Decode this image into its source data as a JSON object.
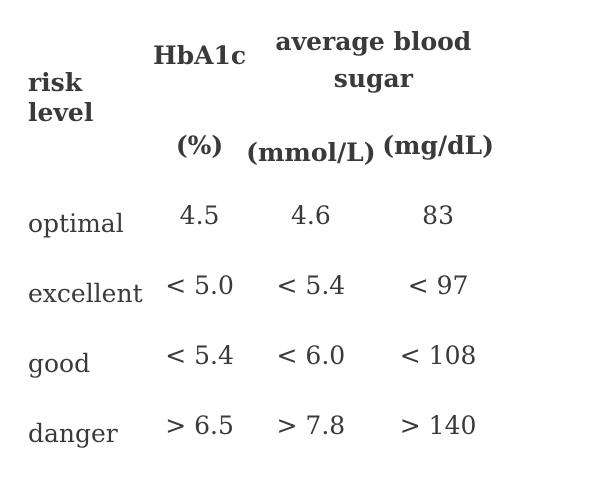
{
  "colors": {
    "text": "#3a3a3a",
    "background": "#ffffff"
  },
  "table": {
    "header": {
      "risk_level": "risk level",
      "hba1c": "HbA1c",
      "hba1c_unit": "(%)",
      "avg_blood_sugar": "average blood sugar",
      "mmol_unit": "(mmol/L)",
      "mgdl_unit": "(mg/dL)"
    },
    "rows": [
      {
        "label": "optimal",
        "hba1c": "4.5",
        "mmol": "4.6",
        "mgdl": "83"
      },
      {
        "label": "excellent",
        "hba1c": "< 5.0",
        "mmol": "< 5.4",
        "mgdl": "< 97"
      },
      {
        "label": "good",
        "hba1c": "< 5.4",
        "mmol": "< 6.0",
        "mgdl": "< 108"
      },
      {
        "label": "danger",
        "hba1c": "> 6.5",
        "mmol": "> 7.8",
        "mgdl": "> 140"
      }
    ]
  },
  "chart_data": {
    "type": "table",
    "title": "",
    "columns": [
      "risk level",
      "HbA1c (%)",
      "average blood sugar (mmol/L)",
      "average blood sugar (mg/dL)"
    ],
    "rows": [
      [
        "optimal",
        "4.5",
        "4.6",
        "83"
      ],
      [
        "excellent",
        "< 5.0",
        "< 5.4",
        "< 97"
      ],
      [
        "good",
        "< 5.4",
        "< 6.0",
        "< 108"
      ],
      [
        "danger",
        "> 6.5",
        "> 7.8",
        "> 140"
      ]
    ],
    "layout_hints": {
      "borders": "none",
      "header_weight": "bold",
      "value_alignment": "center",
      "label_alignment": "left"
    }
  }
}
